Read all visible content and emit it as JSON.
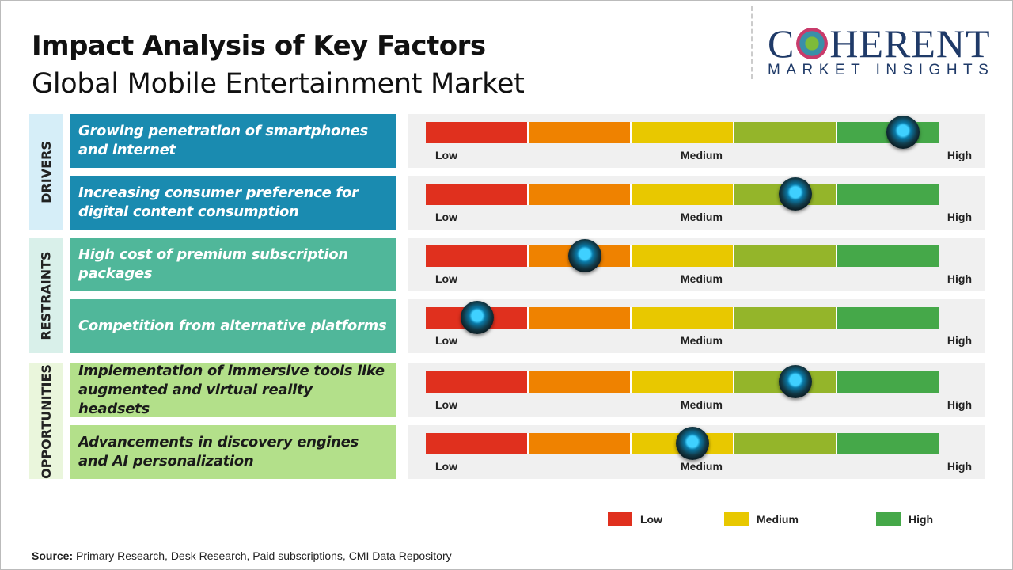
{
  "title": "Impact Analysis of Key Factors",
  "subtitle": "Global Mobile Entertainment Market",
  "logo": {
    "main": "COHERENT",
    "sub": "MARKET INSIGHTS"
  },
  "scale_labels": {
    "low": "Low",
    "medium": "Medium",
    "high": "High"
  },
  "segment_colors": [
    "#e0301e",
    "#ef8200",
    "#e8c800",
    "#94b52a",
    "#45a849"
  ],
  "chart_data": {
    "type": "gauge-table",
    "categories": [
      {
        "name": "DRIVERS",
        "color": "#1a8bb0",
        "band": "#d6eef8",
        "text_color": "#ffffff",
        "factors": [
          {
            "label": "Growing penetration of smartphones and internet",
            "impact": 0.93
          },
          {
            "label": "Increasing consumer preference for digital content consumption",
            "impact": 0.72
          }
        ]
      },
      {
        "name": "RESTRAINTS",
        "color": "#50b79a",
        "band": "#d9f0ea",
        "text_color": "#ffffff",
        "factors": [
          {
            "label": "High cost of premium subscription packages",
            "impact": 0.31
          },
          {
            "label": "Competition from alternative platforms",
            "impact": 0.1
          }
        ]
      },
      {
        "name": "OPPORTUNITIES",
        "color": "#b3e08a",
        "band": "#eaf6dc",
        "text_color": "#1a1a1a",
        "factors": [
          {
            "label": "Implementation of immersive tools like augmented and virtual reality headsets",
            "impact": 0.72
          },
          {
            "label": "Advancements in discovery engines and AI personalization",
            "impact": 0.52
          }
        ]
      }
    ],
    "scale": [
      "Low",
      "Medium",
      "High"
    ],
    "legend": [
      {
        "label": "Low",
        "color": "#e0301e"
      },
      {
        "label": "Medium",
        "color": "#e8c800"
      },
      {
        "label": "High",
        "color": "#45a849"
      }
    ]
  },
  "source": {
    "label": "Source:",
    "text": " Primary Research, Desk Research, Paid subscriptions, CMI Data Repository"
  }
}
